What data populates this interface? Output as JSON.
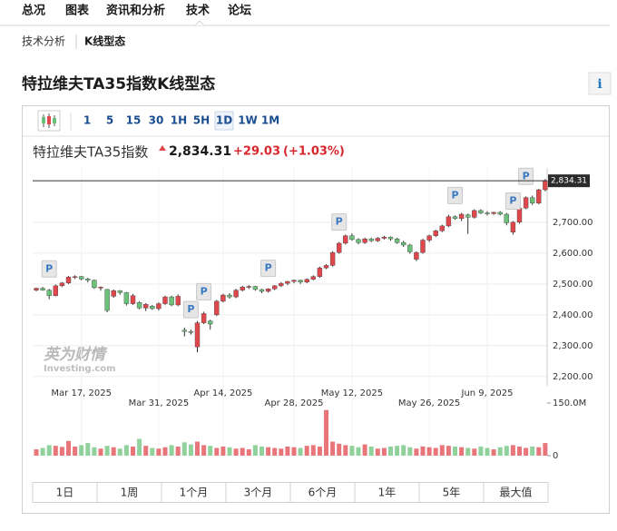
{
  "nav": {
    "tabs": [
      "总况",
      "图表",
      "资讯和分析",
      "技术",
      "论坛"
    ],
    "active": 3
  },
  "breadcrumb": [
    "技术分析",
    "K线型态"
  ],
  "title": "特拉维夫TA35指数K线型态",
  "info": "i",
  "toolbar": {
    "intervals": [
      "1",
      "5",
      "15",
      "30",
      "1H",
      "5H",
      "1D",
      "1W",
      "1M"
    ],
    "active": 6
  },
  "instrument": {
    "name": "特拉维夫TA35指数",
    "price": "2,834.31",
    "change": "+29.03",
    "change_pct": "(+1.03%)"
  },
  "watermark": [
    "英为财情",
    "Investing.com"
  ],
  "periods": [
    "1日",
    "1周",
    "1个月",
    "3个月",
    "6个月",
    "1年",
    "5年",
    "最大值"
  ],
  "chart_data": {
    "type": "candlestick",
    "categories": [
      null,
      null,
      null,
      null,
      null,
      null,
      null,
      "Mar 17, 2025",
      null,
      null,
      null,
      null,
      null,
      null,
      null,
      null,
      null,
      null,
      null,
      "Mar 31, 2025",
      null,
      null,
      null,
      null,
      null,
      null,
      null,
      null,
      null,
      "Apr 14, 2025",
      null,
      null,
      null,
      null,
      null,
      null,
      null,
      null,
      null,
      null,
      "Apr 28, 2025",
      null,
      null,
      null,
      null,
      null,
      null,
      null,
      null,
      "May 12, 2025",
      null,
      null,
      null,
      null,
      null,
      null,
      null,
      null,
      null,
      null,
      null,
      "May 26, 2025",
      null,
      null,
      null,
      null,
      null,
      null,
      null,
      null,
      "Jun 9, 2025",
      null,
      null,
      null,
      null,
      null,
      null,
      null,
      null,
      null
    ],
    "open": [
      2480,
      2486,
      2480,
      2462,
      2494,
      2503,
      2522,
      2524,
      2516,
      2512,
      2488,
      2482,
      2460,
      2478,
      2472,
      2436,
      2440,
      2422,
      2428,
      2420,
      2436,
      2458,
      2432,
      2350,
      2346,
      2296,
      2374,
      2380,
      2400,
      2444,
      2464,
      2458,
      2480,
      2490,
      2492,
      2482,
      2476,
      2484,
      2494,
      2502,
      2508,
      2512,
      2506,
      2515,
      2524,
      2552,
      2560,
      2602,
      2632,
      2656,
      2644,
      2634,
      2646,
      2640,
      2648,
      2652,
      2646,
      2634,
      2626,
      2580,
      2602,
      2642,
      2656,
      2672,
      2688,
      2718,
      2712,
      2724,
      2716,
      2738,
      2730,
      2728,
      2732,
      2726,
      2668,
      2700,
      2746,
      2780,
      2762,
      2805.28
    ],
    "high": [
      2488,
      2490,
      2484,
      2498,
      2506,
      2526,
      2528,
      2526,
      2520,
      2514,
      2492,
      2484,
      2482,
      2480,
      2474,
      2468,
      2444,
      2438,
      2432,
      2440,
      2462,
      2462,
      2466,
      2358,
      2352,
      2380,
      2410,
      2384,
      2448,
      2468,
      2470,
      2484,
      2494,
      2496,
      2494,
      2484,
      2486,
      2496,
      2506,
      2510,
      2514,
      2514,
      2518,
      2528,
      2556,
      2564,
      2606,
      2636,
      2660,
      2664,
      2648,
      2650,
      2650,
      2652,
      2656,
      2654,
      2650,
      2640,
      2630,
      2606,
      2646,
      2660,
      2676,
      2692,
      2724,
      2722,
      2730,
      2728,
      2742,
      2742,
      2736,
      2734,
      2736,
      2730,
      2704,
      2750,
      2784,
      2786,
      2808,
      2840
    ],
    "low": [
      2476,
      2478,
      2450,
      2460,
      2490,
      2500,
      2516,
      2512,
      2505,
      2484,
      2478,
      2408,
      2455,
      2465,
      2430,
      2432,
      2418,
      2412,
      2416,
      2414,
      2432,
      2428,
      2428,
      2330,
      2336,
      2278,
      2370,
      2352,
      2396,
      2440,
      2452,
      2454,
      2476,
      2484,
      2478,
      2470,
      2472,
      2480,
      2490,
      2496,
      2502,
      2500,
      2502,
      2512,
      2520,
      2548,
      2556,
      2598,
      2628,
      2640,
      2628,
      2630,
      2636,
      2636,
      2644,
      2640,
      2630,
      2620,
      2598,
      2574,
      2598,
      2636,
      2652,
      2668,
      2684,
      2708,
      2704,
      2662,
      2712,
      2726,
      2722,
      2724,
      2722,
      2690,
      2660,
      2696,
      2742,
      2756,
      2758,
      2800
    ],
    "close": [
      2486,
      2480,
      2462,
      2494,
      2503,
      2522,
      2524,
      2516,
      2512,
      2488,
      2490,
      2414,
      2478,
      2472,
      2436,
      2462,
      2422,
      2434,
      2420,
      2436,
      2458,
      2432,
      2460,
      2346,
      2344,
      2374,
      2404,
      2370,
      2444,
      2464,
      2458,
      2480,
      2490,
      2492,
      2482,
      2476,
      2484,
      2494,
      2502,
      2508,
      2512,
      2506,
      2515,
      2524,
      2552,
      2560,
      2602,
      2632,
      2656,
      2644,
      2634,
      2646,
      2640,
      2648,
      2652,
      2646,
      2634,
      2626,
      2604,
      2602,
      2642,
      2656,
      2672,
      2688,
      2718,
      2712,
      2726,
      2716,
      2738,
      2730,
      2728,
      2732,
      2726,
      2698,
      2700,
      2746,
      2780,
      2762,
      2805.28,
      2834.31
    ],
    "volume": [
      18,
      22,
      30,
      28,
      25,
      42,
      26,
      30,
      36,
      24,
      20,
      28,
      24,
      20,
      30,
      26,
      48,
      28,
      22,
      20,
      24,
      30,
      26,
      38,
      32,
      40,
      30,
      28,
      22,
      26,
      24,
      20,
      22,
      18,
      30,
      26,
      24,
      22,
      20,
      26,
      24,
      22,
      28,
      30,
      26,
      130,
      40,
      34,
      30,
      28,
      24,
      32,
      26,
      20,
      22,
      26,
      28,
      30,
      24,
      20,
      26,
      24,
      22,
      30,
      28,
      26,
      24,
      22,
      20,
      26,
      22,
      18,
      24,
      28,
      30,
      26,
      22,
      26,
      24,
      36
    ],
    "up_color": "#e0474c",
    "down_color": "#6cc17a",
    "ylim": [
      2170,
      2876
    ],
    "yticks": [
      {
        "value": 2200,
        "label": "2,200.00"
      },
      {
        "value": 2300,
        "label": "2,300.00"
      },
      {
        "value": 2400,
        "label": "2,400.00"
      },
      {
        "value": 2500,
        "label": "2,500.00"
      },
      {
        "value": 2600,
        "label": "2,600.00"
      },
      {
        "value": 2700,
        "label": "2,700.00"
      }
    ],
    "volume_ylim": [
      0,
      150
    ],
    "volume_yticks": [
      {
        "value": 150,
        "label": "150.0M"
      },
      0
    ],
    "last_label": "2,834.31",
    "patterns": [
      {
        "index": 2,
        "label": "P"
      },
      {
        "index": 24,
        "label": "P"
      },
      {
        "index": 26,
        "label": "P"
      },
      {
        "index": 36,
        "label": "P"
      },
      {
        "index": 47,
        "label": "P"
      },
      {
        "index": 65,
        "label": "P"
      },
      {
        "index": 74,
        "label": "P"
      },
      {
        "index": 76,
        "label": "P"
      }
    ],
    "grid": true
  }
}
